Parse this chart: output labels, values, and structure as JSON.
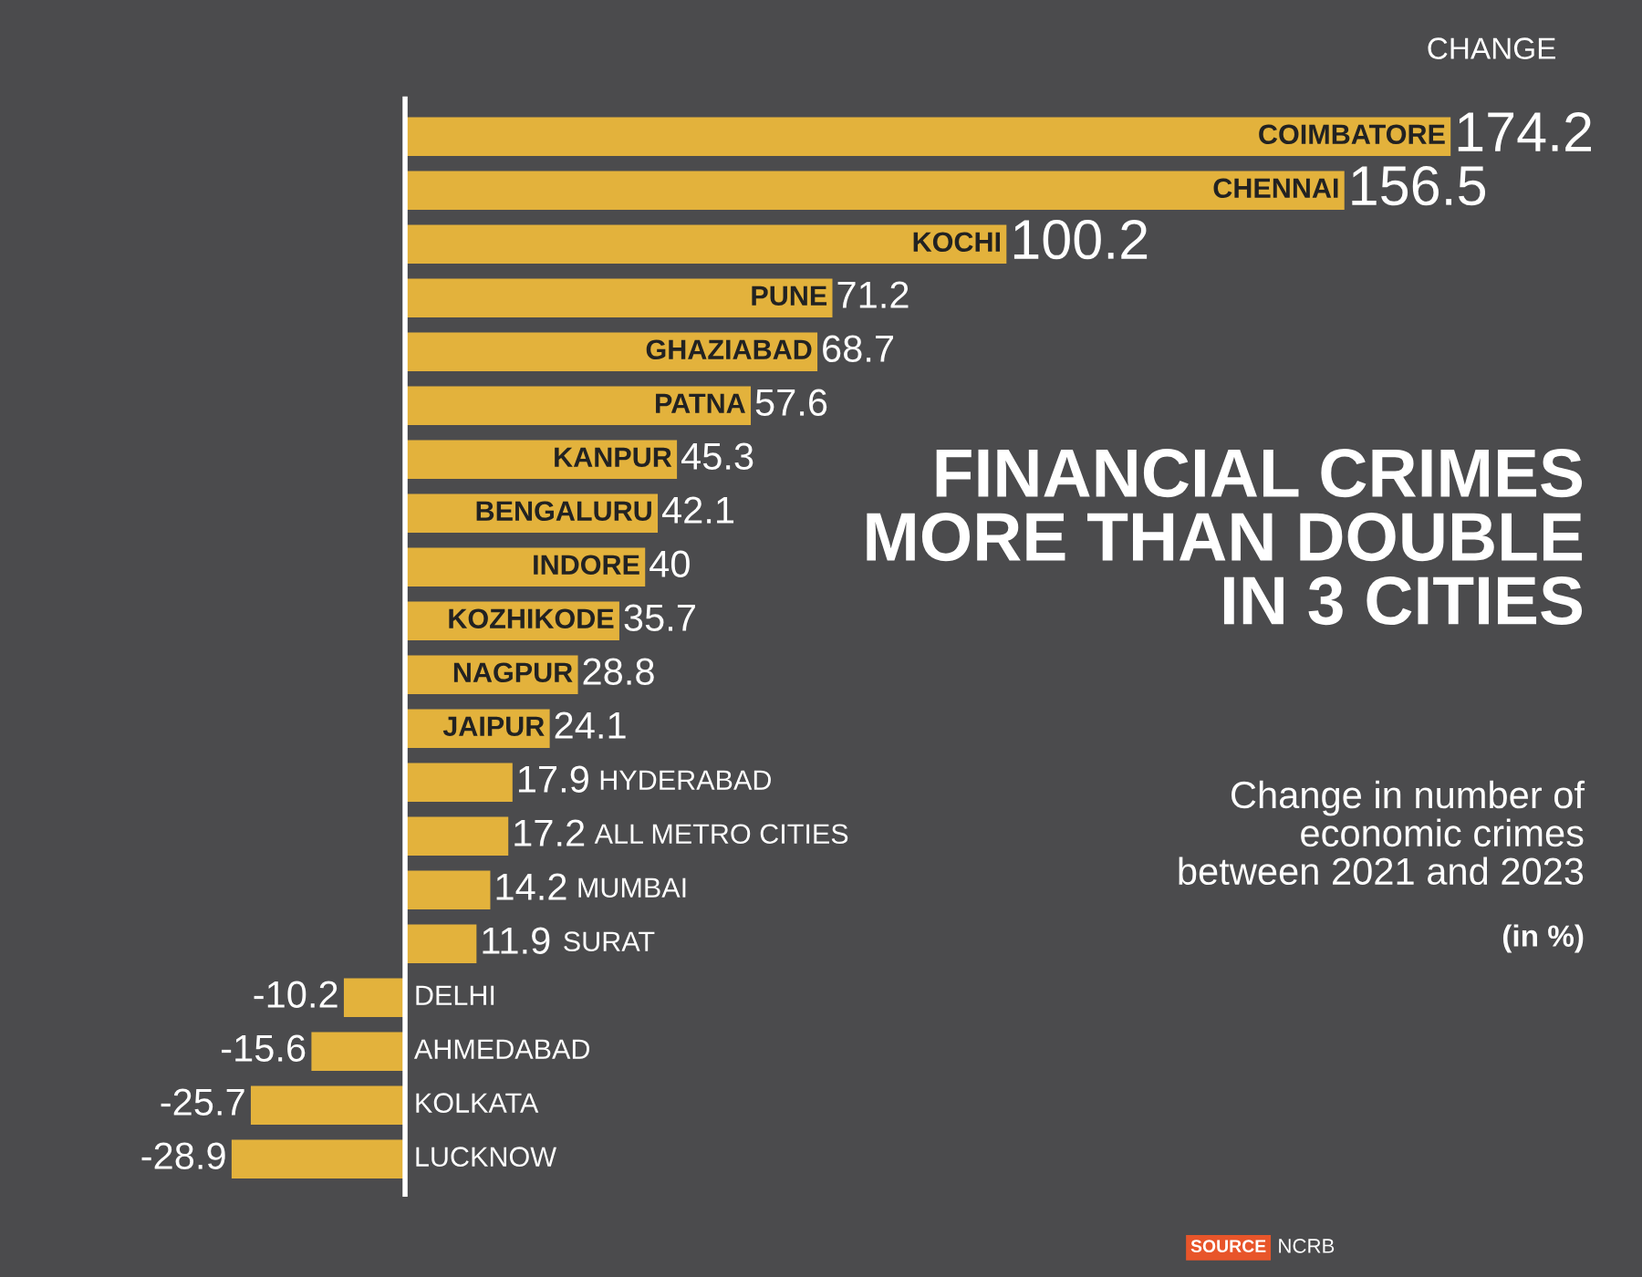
{
  "chart_data": {
    "type": "bar",
    "orientation": "horizontal",
    "title": "FINANCIAL CRIMES\nMORE THAN DOUBLE\nIN 3 CITIES",
    "subtitle": "Change in number of\neconomic crimes\nbetween 2021 and 2023",
    "categories": [
      "COIMBATORE",
      "CHENNAI",
      "KOCHI",
      "PUNE",
      "GHAZIABAD",
      "PATNA",
      "KANPUR",
      "BENGALURU",
      "INDORE",
      "KOZHIKODE",
      "NAGPUR",
      "JAIPUR",
      "HYDERABAD",
      "ALL METRO CITIES",
      "MUMBAI",
      "SURAT",
      "DELHI",
      "AHMEDABAD",
      "KOLKATA",
      "LUCKNOW"
    ],
    "values": [
      174.2,
      156.5,
      100.2,
      71.2,
      68.7,
      57.6,
      45.3,
      42.1,
      40,
      35.7,
      28.8,
      24.1,
      17.9,
      17.2,
      14.2,
      11.9,
      -10.2,
      -15.6,
      -25.7,
      -28.9
    ],
    "color": "#e3b23c",
    "data_labels": true,
    "annotations": [
      "CHANGE",
      "(in %)",
      "SOURCE",
      "NCRB"
    ]
  }
}
